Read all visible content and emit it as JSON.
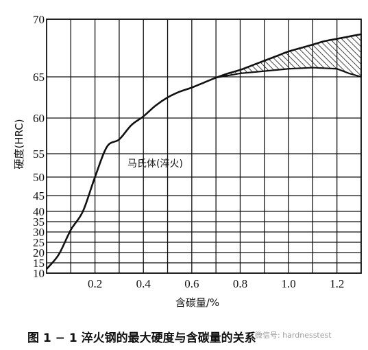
{
  "chart_data": {
    "type": "line",
    "title": "",
    "xlabel": "含碳量/%",
    "ylabel": "硬度(HRC)",
    "xlim": [
      0,
      1.3
    ],
    "ylim": [
      10,
      70
    ],
    "x_ticks": [
      0.2,
      0.4,
      0.6,
      0.8,
      1.0,
      1.2
    ],
    "x_tick_labels": [
      "0.2",
      "0.4",
      "0.6",
      "0.8",
      "1.0",
      "1.2"
    ],
    "y_ticks": [
      10,
      15,
      20,
      25,
      30,
      35,
      40,
      45,
      50,
      55,
      60,
      65,
      70
    ],
    "y_tick_labels": [
      "10",
      "15",
      "20",
      "25",
      "30",
      "35",
      "40",
      "45",
      "50",
      "55",
      "60",
      "65",
      "70"
    ],
    "y_major_gridlines": [
      10,
      15,
      20,
      25,
      30,
      35,
      40,
      45,
      50,
      55,
      60,
      65,
      70
    ],
    "x_gridlines": [
      0.1,
      0.2,
      0.3,
      0.4,
      0.5,
      0.6,
      0.7,
      0.8,
      0.9,
      1.0,
      1.1,
      1.2
    ],
    "grid": true,
    "series": [
      {
        "name": "马氏体(淬火)",
        "x": [
          0.0,
          0.05,
          0.1,
          0.15,
          0.2,
          0.25,
          0.3,
          0.35,
          0.4,
          0.45,
          0.5,
          0.55,
          0.6,
          0.65,
          0.7,
          0.75,
          0.8,
          0.85,
          0.9,
          0.95,
          1.0,
          1.05,
          1.1,
          1.15,
          1.2,
          1.25,
          1.3
        ],
        "y": [
          12,
          19,
          31,
          40,
          50,
          56,
          57,
          59,
          60.2,
          61.5,
          62.5,
          63.2,
          63.7,
          64.3,
          64.9,
          65.3,
          65.6,
          66.0,
          66.4,
          66.8,
          67.2,
          67.5,
          67.8,
          68.1,
          68.3,
          68.5,
          68.7
        ]
      }
    ],
    "lower_band": {
      "x": [
        0.7,
        0.8,
        0.9,
        1.0,
        1.1,
        1.2,
        1.25,
        1.3
      ],
      "y": [
        64.9,
        65.3,
        65.5,
        65.7,
        65.8,
        65.7,
        65.3,
        65.0
      ]
    },
    "hatched_region": "between upper curve and lower band for x 0.7 to 1.3",
    "series_label": "马氏体(淬火)",
    "colors": {
      "line": "#111111",
      "grid": "#111111",
      "background": "#ffffff"
    }
  },
  "caption": "图 1 − 1    淬火钢的最大硬度与含碳量的关系",
  "watermark": "微信号: hardnesstest"
}
